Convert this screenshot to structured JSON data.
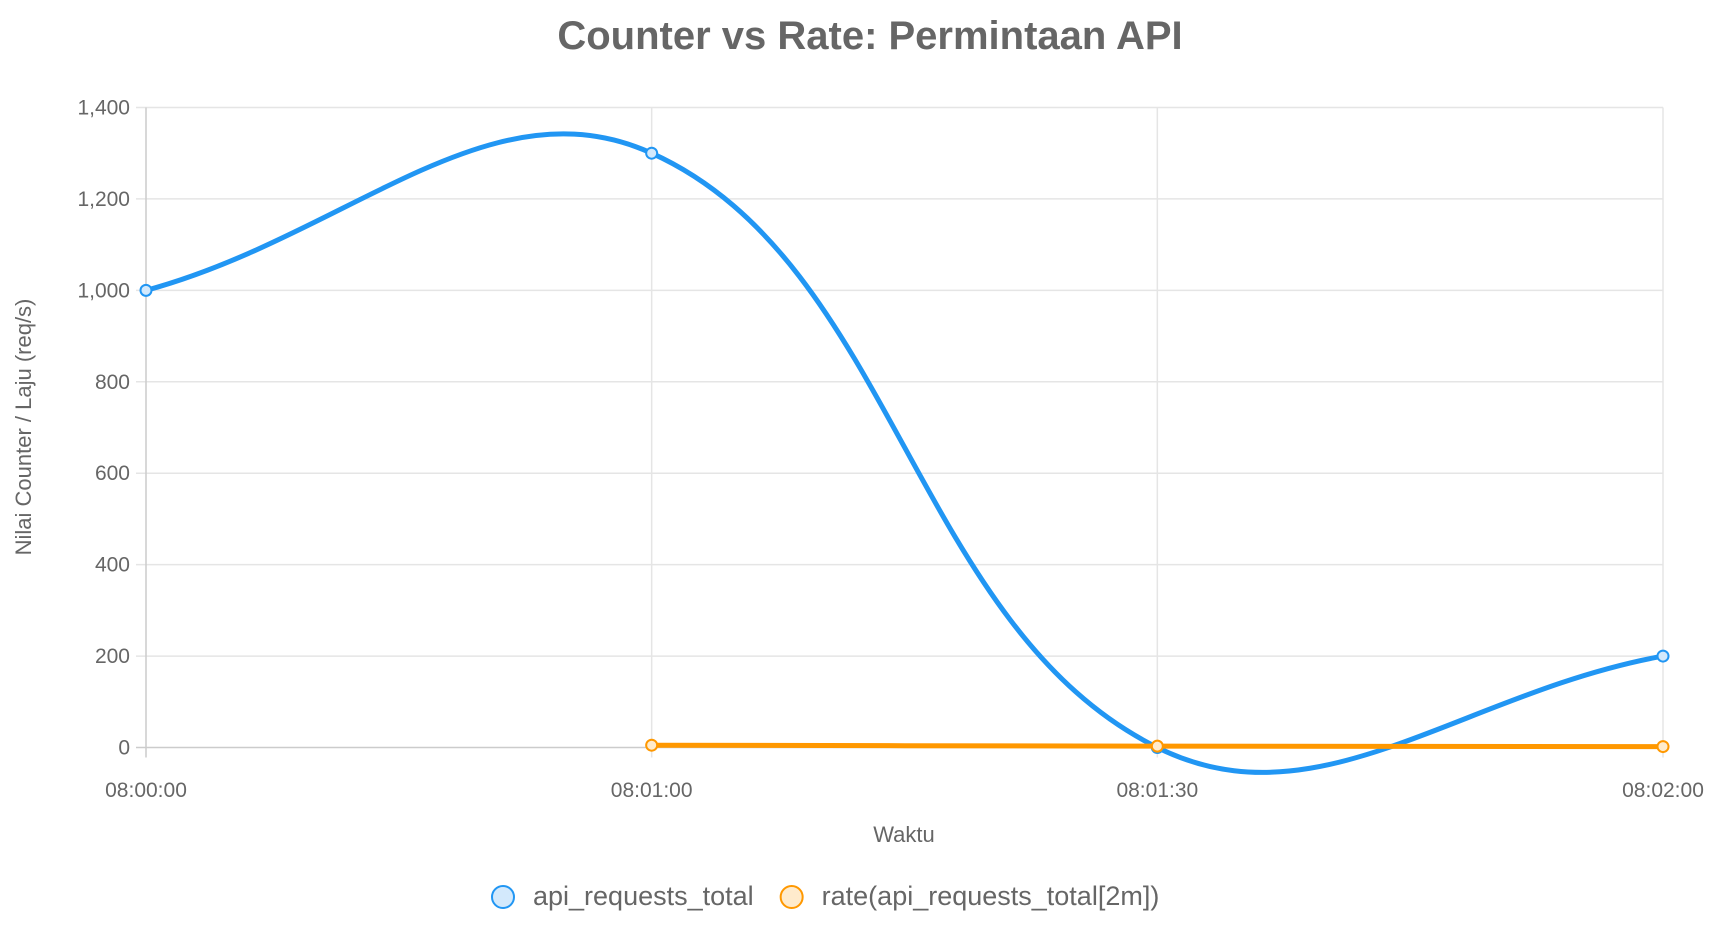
{
  "chart_data": {
    "type": "line",
    "title": "Counter vs Rate: Permintaan API",
    "xlabel": "Waktu",
    "ylabel": "Nilai Counter / Laju (req/s)",
    "categories": [
      "08:00:00",
      "08:01:00",
      "08:01:30",
      "08:02:00"
    ],
    "ylim": [
      0,
      1400
    ],
    "yticks": [
      0,
      200,
      400,
      600,
      800,
      1000,
      1200,
      1400
    ],
    "ytick_labels": [
      "0",
      "200",
      "400",
      "600",
      "800",
      "1,000",
      "1,200",
      "1,400"
    ],
    "grid": true,
    "legend_position": "bottom",
    "series": [
      {
        "name": "api_requests_total",
        "color": "#2196F3",
        "fill": "#D3E9FC",
        "values": [
          1000,
          1300,
          0,
          200
        ]
      },
      {
        "name": "rate(api_requests_total[2m])",
        "color": "#FF9800",
        "fill": "#FFEBCC",
        "values": [
          null,
          5,
          3,
          2
        ]
      }
    ]
  }
}
